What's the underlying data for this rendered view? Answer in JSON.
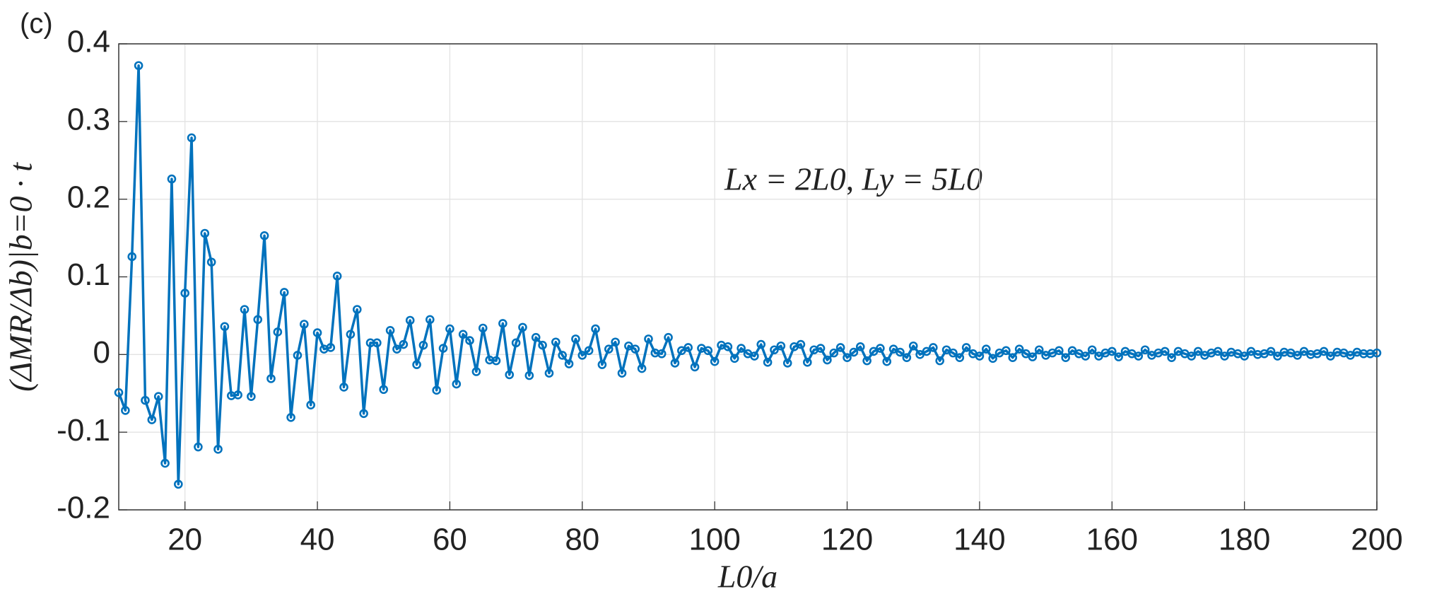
{
  "chart_data": {
    "type": "line",
    "panel_label": "(c)",
    "xlabel": "L0/a",
    "ylabel": "(ΔMR/Δb)|b=0 · t",
    "annotation": "Lx = 2L0, Ly = 5L0",
    "xlim": [
      10,
      200
    ],
    "ylim": [
      -0.2,
      0.4
    ],
    "xticks": [
      20,
      40,
      60,
      80,
      100,
      120,
      140,
      160,
      180,
      200
    ],
    "yticks": [
      -0.2,
      -0.1,
      0,
      0.1,
      0.2,
      0.3,
      0.4
    ],
    "grid": true,
    "x": [
      10,
      11,
      12,
      13,
      14,
      15,
      16,
      17,
      18,
      19,
      20,
      21,
      22,
      23,
      24,
      25,
      26,
      27,
      28,
      29,
      30,
      31,
      32,
      33,
      34,
      35,
      36,
      37,
      38,
      39,
      40,
      41,
      42,
      43,
      44,
      45,
      46,
      47,
      48,
      49,
      50,
      51,
      52,
      53,
      54,
      55,
      56,
      57,
      58,
      59,
      60,
      61,
      62,
      63,
      64,
      65,
      66,
      67,
      68,
      69,
      70,
      71,
      72,
      73,
      74,
      75,
      76,
      77,
      78,
      79,
      80,
      81,
      82,
      83,
      84,
      85,
      86,
      87,
      88,
      89,
      90,
      91,
      92,
      93,
      94,
      95,
      96,
      97,
      98,
      99,
      100,
      101,
      102,
      103,
      104,
      105,
      106,
      107,
      108,
      109,
      110,
      111,
      112,
      113,
      114,
      115,
      116,
      117,
      118,
      119,
      120,
      121,
      122,
      123,
      124,
      125,
      126,
      127,
      128,
      129,
      130,
      131,
      132,
      133,
      134,
      135,
      136,
      137,
      138,
      139,
      140,
      141,
      142,
      143,
      144,
      145,
      146,
      147,
      148,
      149,
      150,
      151,
      152,
      153,
      154,
      155,
      156,
      157,
      158,
      159,
      160,
      161,
      162,
      163,
      164,
      165,
      166,
      167,
      168,
      169,
      170,
      171,
      172,
      173,
      174,
      175,
      176,
      177,
      178,
      179,
      180,
      181,
      182,
      183,
      184,
      185,
      186,
      187,
      188,
      189,
      190,
      191,
      192,
      193,
      194,
      195,
      196,
      197,
      198,
      199,
      200
    ],
    "series": [
      {
        "color": "#0072bd",
        "values": [
          -0.049,
          -0.072,
          0.126,
          0.372,
          -0.059,
          -0.084,
          -0.054,
          -0.14,
          0.226,
          -0.167,
          0.079,
          0.279,
          -0.119,
          0.156,
          0.119,
          -0.122,
          0.036,
          -0.053,
          -0.052,
          0.058,
          -0.054,
          0.045,
          0.153,
          -0.031,
          0.029,
          0.08,
          -0.081,
          -0.001,
          0.039,
          -0.065,
          0.028,
          0.007,
          0.009,
          0.101,
          -0.042,
          0.026,
          0.058,
          -0.076,
          0.015,
          0.015,
          -0.045,
          0.031,
          0.007,
          0.013,
          0.044,
          -0.013,
          0.012,
          0.045,
          -0.046,
          0.008,
          0.033,
          -0.038,
          0.026,
          0.018,
          -0.022,
          0.034,
          -0.007,
          -0.008,
          0.04,
          -0.026,
          0.015,
          0.035,
          -0.027,
          0.022,
          0.012,
          -0.024,
          0.016,
          -0.001,
          -0.012,
          0.02,
          -0.001,
          0.005,
          0.033,
          -0.013,
          0.007,
          0.016,
          -0.024,
          0.011,
          0.007,
          -0.018,
          0.02,
          0.002,
          0.001,
          0.022,
          -0.011,
          0.005,
          0.009,
          -0.016,
          0.008,
          0.005,
          -0.009,
          0.012,
          0.01,
          -0.005,
          0.008,
          0.001,
          -0.002,
          0.013,
          -0.01,
          0.006,
          0.011,
          -0.011,
          0.01,
          0.013,
          -0.01,
          0.006,
          0.008,
          -0.007,
          0.002,
          0.009,
          -0.004,
          0.003,
          0.01,
          -0.008,
          0.004,
          0.008,
          -0.009,
          0.007,
          0.003,
          -0.004,
          0.011,
          0.0,
          0.004,
          0.009,
          -0.008,
          0.006,
          0.002,
          -0.004,
          0.009,
          0.001,
          -0.002,
          0.007,
          -0.005,
          0.002,
          0.005,
          -0.004,
          0.007,
          0.001,
          -0.003,
          0.006,
          -0.001,
          0.002,
          0.005,
          -0.004,
          0.005,
          0.001,
          -0.002,
          0.006,
          -0.002,
          0.002,
          0.004,
          -0.003,
          0.004,
          0.001,
          -0.002,
          0.006,
          -0.001,
          0.002,
          0.004,
          -0.004,
          0.004,
          0.001,
          -0.002,
          0.004,
          -0.001,
          0.002,
          0.004,
          -0.002,
          0.003,
          0.001,
          -0.002,
          0.004,
          0.0,
          0.001,
          0.004,
          -0.002,
          0.003,
          0.002,
          -0.001,
          0.004,
          0.0,
          0.001,
          0.004,
          -0.002,
          0.003,
          0.002,
          -0.001,
          0.003,
          0.001,
          0.001,
          0.002
        ]
      }
    ]
  }
}
